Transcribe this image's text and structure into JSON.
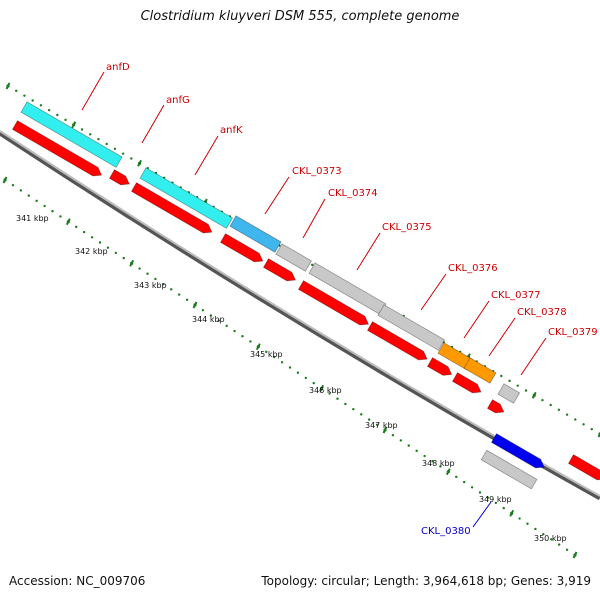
{
  "title": "Clostridium kluyveri DSM 555, complete genome",
  "accession_label": "Accession: NC_009706",
  "summary": "Topology: circular; Length: 3,964,618 bp; Genes: 3,919",
  "ticks": [
    "341 kbp",
    "342 kbp",
    "343 kbp",
    "344 kbp",
    "345 kbp",
    "346 kbp",
    "347 kbp",
    "348 kbp",
    "349 kbp",
    "350 kbp"
  ],
  "genes": [
    {
      "name": "anfD",
      "color": "#cc0000"
    },
    {
      "name": "anfG",
      "color": "#cc0000"
    },
    {
      "name": "anfK",
      "color": "#cc0000"
    },
    {
      "name": "CKL_0373",
      "color": "#cc0000"
    },
    {
      "name": "CKL_0374",
      "color": "#cc0000"
    },
    {
      "name": "CKL_0375",
      "color": "#cc0000"
    },
    {
      "name": "CKL_0376",
      "color": "#cc0000"
    },
    {
      "name": "CKL_0377",
      "color": "#cc0000"
    },
    {
      "name": "CKL_0378",
      "color": "#cc0000"
    },
    {
      "name": "CKL_0379",
      "color": "#cc0000"
    },
    {
      "name": "CKL_0380",
      "color": "#0000cc"
    }
  ],
  "colors": {
    "cds": "#ff0000",
    "cds_edge": "#aa0000",
    "cyan": "#33eeee",
    "sky": "#3fb6ee",
    "gray": "#c8c8c8",
    "orange": "#ff9900",
    "blue": "#0000ee",
    "backbone": "#888888",
    "tick_green": "#1d7a1d"
  }
}
